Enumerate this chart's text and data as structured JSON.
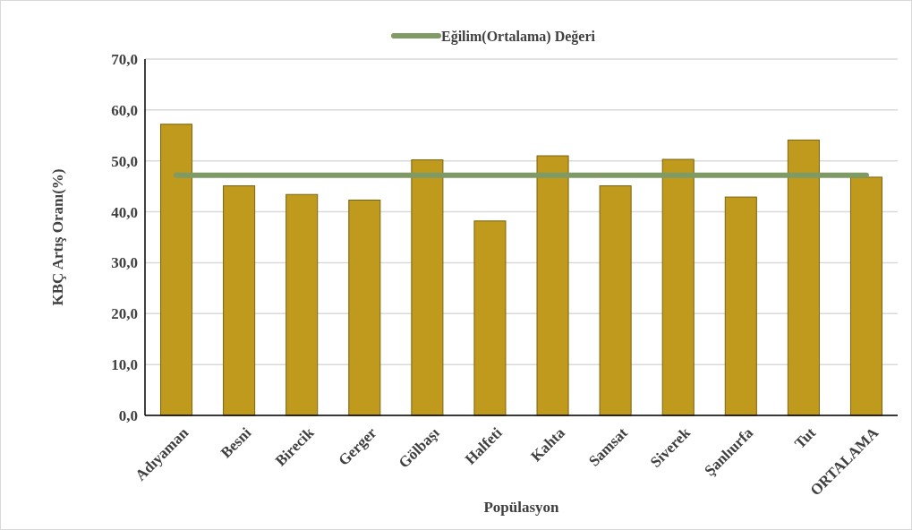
{
  "chart_data": {
    "type": "bar",
    "xlabel": "Popülasyon",
    "ylabel": "KBÇ Artış Oranı(%)",
    "categories": [
      "Adıyaman",
      "Besni",
      "Birecik",
      "Gerger",
      "Gölbaşı",
      "Halfeti",
      "Kahta",
      "Samsat",
      "Siverek",
      "Şanlıurfa",
      "Tut",
      "ORTALAMA"
    ],
    "series": [
      {
        "color": "#bf9a1c",
        "values": [
          57.2,
          45.1,
          43.4,
          42.3,
          50.2,
          38.2,
          51.0,
          45.1,
          50.3,
          42.9,
          54.1,
          46.8
        ]
      },
      {
        "type": "line",
        "name": "Eğilim(Ortalama) Değeri",
        "color": "#7f9a65",
        "values": [
          47.2,
          47.2,
          47.2,
          47.2,
          47.2,
          47.2,
          47.2,
          47.2,
          47.2,
          47.2,
          47.2,
          47.2
        ]
      }
    ],
    "ylim": [
      0,
      70
    ],
    "yticks": [
      {
        "value": 0,
        "label": "0,0"
      },
      {
        "value": 10,
        "label": "10,0"
      },
      {
        "value": 20,
        "label": "20,0"
      },
      {
        "value": 30,
        "label": "30,0"
      },
      {
        "value": 40,
        "label": "40,0"
      },
      {
        "value": 50,
        "label": "50,0"
      },
      {
        "value": 60,
        "label": "60,0"
      },
      {
        "value": 70,
        "label": "70,0"
      }
    ],
    "grid": "y",
    "legend": "top",
    "line_style": "solid"
  }
}
